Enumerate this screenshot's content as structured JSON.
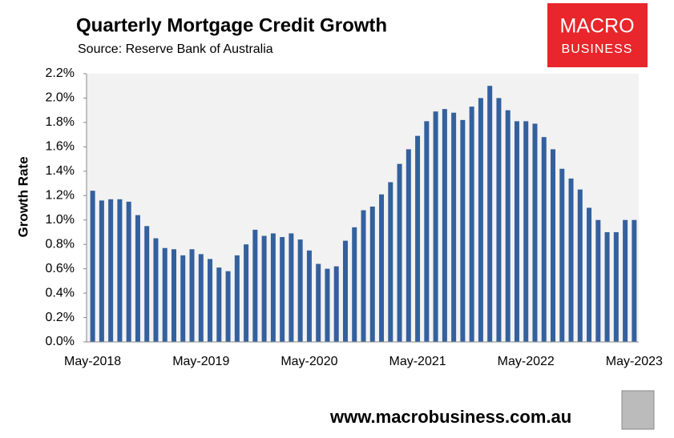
{
  "chart_data": {
    "type": "bar",
    "title": "Quarterly Mortgage Credit Growth",
    "subtitle": "Source: Reserve Bank of Australia",
    "y_label": "Growth Rate",
    "color": "#34609e",
    "grid": false,
    "categories": [
      "May-2018",
      null,
      null,
      null,
      null,
      null,
      null,
      null,
      null,
      null,
      null,
      null,
      "May-2019",
      null,
      null,
      null,
      null,
      null,
      null,
      null,
      null,
      null,
      null,
      null,
      "May-2020",
      null,
      null,
      null,
      null,
      null,
      null,
      null,
      null,
      null,
      null,
      null,
      "May-2021",
      null,
      null,
      null,
      null,
      null,
      null,
      null,
      null,
      null,
      null,
      null,
      "May-2022",
      null,
      null,
      null,
      null,
      null,
      null,
      null,
      null,
      null,
      null,
      null,
      "May-2023"
    ],
    "values": [
      1.24,
      1.16,
      1.17,
      1.17,
      1.15,
      1.04,
      0.95,
      0.85,
      0.77,
      0.76,
      0.71,
      0.76,
      0.72,
      0.68,
      0.61,
      0.58,
      0.71,
      0.8,
      0.92,
      0.87,
      0.89,
      0.86,
      0.89,
      0.84,
      0.75,
      0.64,
      0.6,
      0.62,
      0.83,
      0.94,
      1.08,
      1.11,
      1.21,
      1.31,
      1.46,
      1.58,
      1.69,
      1.81,
      1.89,
      1.91,
      1.88,
      1.82,
      1.93,
      2.0,
      2.1,
      2.0,
      1.9,
      1.81,
      1.81,
      1.79,
      1.68,
      1.58,
      1.42,
      1.34,
      1.25,
      1.1,
      1.0,
      0.9,
      0.9,
      1.0,
      1.0
    ],
    "ylim": [
      0,
      2.2
    ],
    "yticks": [
      {
        "value": 0,
        "label": "0.0%"
      },
      {
        "value": 0.2,
        "label": "0.2%"
      },
      {
        "value": 0.4,
        "label": "0.4%"
      },
      {
        "value": 0.6,
        "label": "0.6%"
      },
      {
        "value": 0.8,
        "label": "0.8%"
      },
      {
        "value": 1.0,
        "label": "1.0%"
      },
      {
        "value": 1.2,
        "label": "1.2%"
      },
      {
        "value": 1.4,
        "label": "1.4%"
      },
      {
        "value": 1.6,
        "label": "1.6%"
      },
      {
        "value": 1.8,
        "label": "1.8%"
      },
      {
        "value": 2.0,
        "label": "2.0%"
      },
      {
        "value": 2.2,
        "label": "2.2%"
      }
    ]
  },
  "logo": {
    "line1": "MACRO",
    "line2": "BUSINESS"
  },
  "footer": "www.macrobusiness.com.au"
}
